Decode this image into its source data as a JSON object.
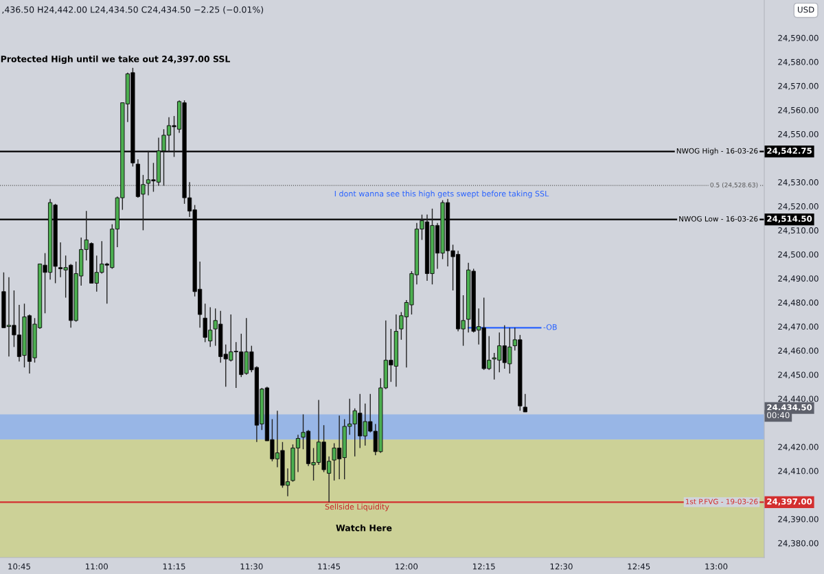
{
  "chart_data": {
    "type": "candlestick",
    "annotations": [
      ",436.50 H24,442.00 L24,434.50 C24,434.50 −2.25 (−0.01%)",
      "USD",
      "00:40",
      "Protected High until we take out 24,397.00 SSL",
      "I dont wanna see this high gets swept before taking SSL",
      "Sellside Liquidity",
      "Watch Here",
      "24,542.75",
      "24,514.50",
      "24,397.00",
      "24,434.50"
    ],
    "x": [
      10.7,
      10.7167,
      10.7333,
      10.75,
      10.7667,
      10.7833,
      10.8,
      10.8167,
      10.8333,
      10.85,
      10.8667,
      10.8833,
      10.9,
      10.9167,
      10.9333,
      10.95,
      10.9667,
      10.9833,
      11,
      11.0167,
      11.0333,
      11.05,
      11.0667,
      11.0833,
      11.1,
      11.1167,
      11.1333,
      11.15,
      11.1667,
      11.1833,
      11.2,
      11.2167,
      11.2333,
      11.25,
      11.2667,
      11.2833,
      11.3,
      11.3167,
      11.3333,
      11.35,
      11.3667,
      11.3833,
      11.4,
      11.4167,
      11.4333,
      11.45,
      11.4667,
      11.4833,
      11.5,
      11.5167,
      11.5333,
      11.55,
      11.5667,
      11.5833,
      11.6,
      11.6167,
      11.6333,
      11.65,
      11.6667,
      11.6833,
      11.7,
      11.7167,
      11.7333,
      11.75,
      11.7667,
      11.7833,
      11.8,
      11.8167,
      11.8333,
      11.85,
      11.8667,
      11.8833,
      11.9,
      11.9167,
      11.9333,
      11.95,
      11.9667,
      11.9833,
      12,
      12.0167,
      12.0333,
      12.05,
      12.0667,
      12.0833,
      12.1,
      12.1167,
      12.1333,
      12.15,
      12.1667,
      12.1833,
      12.2,
      12.2167,
      12.2333,
      12.25,
      12.2667,
      12.2833,
      12.3,
      12.3167,
      12.3333,
      12.35,
      12.3667,
      12.3833
    ],
    "ohlc": [
      [
        24484.5,
        24492.5,
        24469.5,
        24469.5
      ],
      [
        24470,
        24490.5,
        24457.5,
        24470.5
      ],
      [
        24470.5,
        24485,
        24461.5,
        24466.5
      ],
      [
        24466.5,
        24479,
        24455.5,
        24457.5
      ],
      [
        24458,
        24479.5,
        24453,
        24474
      ],
      [
        24474.5,
        24475,
        24450.5,
        24455.5
      ],
      [
        24457,
        24473.5,
        24455,
        24471
      ],
      [
        24469.5,
        24496,
        24469,
        24496
      ],
      [
        24495.5,
        24500.5,
        24475.5,
        24492.5
      ],
      [
        24492.5,
        24523,
        24489.5,
        24521.5
      ],
      [
        24520.5,
        24521,
        24488,
        24495
      ],
      [
        24494.5,
        24505,
        24490.5,
        24494
      ],
      [
        24493.5,
        24499.5,
        24482,
        24494.5
      ],
      [
        24495.5,
        24496,
        24469.5,
        24472.5
      ],
      [
        24472.5,
        24497,
        24472,
        24492
      ],
      [
        24491,
        24507,
        24487,
        24502
      ],
      [
        24502,
        24518,
        24497.5,
        24506
      ],
      [
        24504.5,
        24505,
        24488,
        24488
      ],
      [
        24488,
        24499.5,
        24484.5,
        24492.5
      ],
      [
        24492.5,
        24505.5,
        24492,
        24496
      ],
      [
        24496,
        24496.5,
        24479.5,
        24495.5
      ],
      [
        24494.5,
        24512.5,
        24494,
        24510.5
      ],
      [
        24510.5,
        24524,
        24503,
        24523.5
      ],
      [
        24523.5,
        24563,
        24518.5,
        24563
      ],
      [
        24562.5,
        24575.5,
        24555,
        24575
      ],
      [
        24575.5,
        24577.5,
        24536.5,
        24538
      ],
      [
        24537.5,
        24539.5,
        24523.5,
        24524
      ],
      [
        24525,
        24533,
        24510,
        24529
      ],
      [
        24529.5,
        24543,
        24524.5,
        24531
      ],
      [
        24531,
        24538,
        24526,
        24530.5
      ],
      [
        24530,
        24548.5,
        24528.5,
        24543
      ],
      [
        24543,
        24552,
        24528.5,
        24549.5
      ],
      [
        24549.5,
        24557,
        24542.5,
        24553.5
      ],
      [
        24553.5,
        24557.5,
        24540.5,
        24553
      ],
      [
        24552,
        24564,
        24550.5,
        24563.5
      ],
      [
        24563,
        24564,
        24521,
        24523.5
      ],
      [
        24523.5,
        24530,
        24515.5,
        24518
      ],
      [
        24518.5,
        24520.5,
        24482.5,
        24484.5
      ],
      [
        24485.5,
        24497,
        24469.5,
        24475
      ],
      [
        24473.5,
        24479.5,
        24463.5,
        24465.5
      ],
      [
        24464,
        24478,
        24461.5,
        24468.5
      ],
      [
        24469,
        24477.5,
        24462,
        24472.5
      ],
      [
        24471,
        24476.5,
        24455,
        24457.5
      ],
      [
        24458.5,
        24462.5,
        24445,
        24456.5
      ],
      [
        24456,
        24475,
        24455.5,
        24459.5
      ],
      [
        24459.5,
        24463.5,
        24444.5,
        24459.5
      ],
      [
        24459.5,
        24467,
        24449,
        24450
      ],
      [
        24450.5,
        24473.5,
        24450,
        24459.5
      ],
      [
        24459.5,
        24462,
        24451,
        24452
      ],
      [
        24453,
        24453.5,
        24422,
        24429
      ],
      [
        24429.5,
        24444.5,
        24427,
        24444
      ],
      [
        24444.5,
        24445,
        24422.5,
        24422.5
      ],
      [
        24423,
        24431.5,
        24414,
        24415
      ],
      [
        24415,
        24435,
        24411.5,
        24417.5
      ],
      [
        24418.5,
        24422,
        24403,
        24404
      ],
      [
        24404,
        24411,
        24399.5,
        24405.5
      ],
      [
        24406,
        24421,
        24405.5,
        24419.5
      ],
      [
        24419.5,
        24425,
        24409.5,
        24423.5
      ],
      [
        24424,
        24433.5,
        24419,
        24426
      ],
      [
        24426.5,
        24427,
        24412,
        24413
      ],
      [
        24412.5,
        24419.5,
        24406,
        24413.5
      ],
      [
        24413.5,
        24439.5,
        24412.5,
        24422
      ],
      [
        24422,
        24429,
        24409.5,
        24410.5
      ],
      [
        24409,
        24416,
        24397,
        24414
      ],
      [
        24414.5,
        24421.5,
        24406,
        24419.5
      ],
      [
        24419.5,
        24433,
        24406.5,
        24415
      ],
      [
        24415.5,
        24431.5,
        24406.5,
        24428.5
      ],
      [
        24428.5,
        24440,
        24425,
        24429.5
      ],
      [
        24429.5,
        24436,
        24416,
        24435
      ],
      [
        24434,
        24442,
        24419.5,
        24424.5
      ],
      [
        24424.5,
        24438,
        24420.5,
        24430.5
      ],
      [
        24430.5,
        24442,
        24426,
        24426.5
      ],
      [
        24426.5,
        24429.5,
        24416.5,
        24418
      ],
      [
        24418,
        24448.5,
        24417.5,
        24444.5
      ],
      [
        24444.5,
        24472.5,
        24444,
        24456
      ],
      [
        24456,
        24469,
        24447,
        24454
      ],
      [
        24453.5,
        24475,
        24445,
        24468
      ],
      [
        24469,
        24476,
        24464.5,
        24474.5
      ],
      [
        24474,
        24481,
        24453,
        24480
      ],
      [
        24479,
        24493,
        24475,
        24492
      ],
      [
        24491.5,
        24513,
        24487.5,
        24510.5
      ],
      [
        24510.5,
        24516.5,
        24506,
        24514
      ],
      [
        24513.5,
        24516.5,
        24489,
        24492
      ],
      [
        24492,
        24519,
        24487.5,
        24512
      ],
      [
        24512,
        24513,
        24494,
        24500.5
      ],
      [
        24500.5,
        24522.5,
        24498,
        24521.5
      ],
      [
        24521.5,
        24523,
        24495,
        24501.5
      ],
      [
        24501.5,
        24504,
        24485,
        24499
      ],
      [
        24500,
        24501.5,
        24468,
        24469
      ],
      [
        24469,
        24483,
        24462,
        24472.5
      ],
      [
        24473,
        24496.5,
        24467.5,
        24493.5
      ],
      [
        24493,
        24494,
        24467.5,
        24468
      ],
      [
        24468.5,
        24477.5,
        24462.5,
        24470
      ],
      [
        24469.5,
        24482,
        24452,
        24452.5
      ],
      [
        24452.5,
        24466,
        24452,
        24456
      ],
      [
        24456.5,
        24459,
        24448,
        24457
      ],
      [
        24456,
        24467.5,
        24451,
        24462
      ],
      [
        24462,
        24470.5,
        24452.5,
        24455
      ],
      [
        24454.5,
        24469.5,
        24450.5,
        24461.5
      ],
      [
        24462,
        24469.5,
        24460,
        24464.5
      ],
      [
        24464.5,
        24466.5,
        24435,
        24437
      ],
      [
        24436.5,
        24442,
        24434.5,
        24434.5
      ]
    ],
    "colors": [
      "#000000",
      "#4caf50",
      "#000000",
      "#000000",
      "#4caf50",
      "#000000",
      "#4caf50",
      "#4caf50",
      "#000000",
      "#4caf50",
      "#000000",
      "#000000",
      "#4caf50",
      "#000000",
      "#4caf50",
      "#4caf50",
      "#4caf50",
      "#000000",
      "#4caf50",
      "#4caf50",
      "#000000",
      "#4caf50",
      "#4caf50",
      "#4caf50",
      "#4caf50",
      "#000000",
      "#000000",
      "#4caf50",
      "#4caf50",
      "#000000",
      "#4caf50",
      "#4caf50",
      "#4caf50",
      "#000000",
      "#4caf50",
      "#000000",
      "#000000",
      "#000000",
      "#000000",
      "#000000",
      "#4caf50",
      "#4caf50",
      "#000000",
      "#000000",
      "#4caf50",
      "#000000",
      "#000000",
      "#4caf50",
      "#000000",
      "#000000",
      "#4caf50",
      "#000000",
      "#000000",
      "#4caf50",
      "#000000",
      "#4caf50",
      "#4caf50",
      "#4caf50",
      "#4caf50",
      "#000000",
      "#4caf50",
      "#4caf50",
      "#000000",
      "#4caf50",
      "#4caf50",
      "#000000",
      "#4caf50",
      "#4caf50",
      "#4caf50",
      "#000000",
      "#4caf50",
      "#000000",
      "#000000",
      "#4caf50",
      "#4caf50",
      "#000000",
      "#4caf50",
      "#4caf50",
      "#4caf50",
      "#4caf50",
      "#4caf50",
      "#4caf50",
      "#000000",
      "#4caf50",
      "#000000",
      "#4caf50",
      "#000000",
      "#000000",
      "#000000",
      "#4caf50",
      "#4caf50",
      "#000000",
      "#4caf50",
      "#000000",
      "#4caf50",
      "#4caf50",
      "#4caf50",
      "#000000",
      "#4caf50",
      "#4caf50",
      "#000000",
      "#000000"
    ],
    "series": [
      {
        "name": "-OB",
        "type": "line",
        "color": "#2962ff",
        "x": [
          12.2,
          12.4333
        ],
        "values": [
          24469.5,
          24469.5
        ]
      }
    ],
    "ref_lines": [
      {
        "axis": "y",
        "value": 24542.75,
        "label": "NWOG High - 16-03-26",
        "color": "#000000",
        "line_style": "solid"
      },
      {
        "axis": "y",
        "value": 24528.63,
        "label": "0.5 (24,528.63)",
        "color": "#555555",
        "line_style": "dotted"
      },
      {
        "axis": "y",
        "value": 24514.5,
        "label": "NWOG Low - 16-03-26",
        "color": "#000000",
        "line_style": "solid"
      },
      {
        "axis": "y",
        "value": 24397,
        "label": "1st P.FVG - 19-03-26",
        "color": "#d32f2f",
        "line_style": "solid"
      }
    ],
    "bands": [
      {
        "axis": "y",
        "from": 24423,
        "to": 24433.5,
        "color": "#98b6e6"
      },
      {
        "axis": "y",
        "from": 24374,
        "to": 24423,
        "color": "#ccd197"
      }
    ],
    "xlim": [
      10.688,
      13.155
    ],
    "xticks": [
      {
        "value": 10.75,
        "label": "10:45"
      },
      {
        "value": 11,
        "label": "11:00"
      },
      {
        "value": 11.25,
        "label": "11:15"
      },
      {
        "value": 11.5,
        "label": "11:30"
      },
      {
        "value": 11.75,
        "label": "11:45"
      },
      {
        "value": 12,
        "label": "12:00"
      },
      {
        "value": 12.25,
        "label": "12:15"
      },
      {
        "value": 12.5,
        "label": "12:30"
      },
      {
        "value": 12.75,
        "label": "12:45"
      },
      {
        "value": 13,
        "label": "13:00"
      }
    ],
    "ylim": [
      24374,
      24605.7
    ],
    "yticks": [
      {
        "value": 24380,
        "label": "24,380.00"
      },
      {
        "value": 24390,
        "label": "24,390.00"
      },
      {
        "value": 24410,
        "label": "24,410.00"
      },
      {
        "value": 24420,
        "label": "24,420.00"
      },
      {
        "value": 24440,
        "label": "24,440.00"
      },
      {
        "value": 24450,
        "label": "24,450.00"
      },
      {
        "value": 24460,
        "label": "24,460.00"
      },
      {
        "value": 24470,
        "label": "24,470.00"
      },
      {
        "value": 24480,
        "label": "24,480.00"
      },
      {
        "value": 24490,
        "label": "24,490.00"
      },
      {
        "value": 24500,
        "label": "24,500.00"
      },
      {
        "value": 24510,
        "label": "24,510.00"
      },
      {
        "value": 24520,
        "label": "24,520.00"
      },
      {
        "value": 24530,
        "label": "24,530.00"
      },
      {
        "value": 24550,
        "label": "24,550.00"
      },
      {
        "value": 24560,
        "label": "24,560.00"
      },
      {
        "value": 24570,
        "label": "24,570.00"
      },
      {
        "value": 24580,
        "label": "24,580.00"
      },
      {
        "value": 24590,
        "label": "24,590.00"
      }
    ],
    "grid": false
  }
}
